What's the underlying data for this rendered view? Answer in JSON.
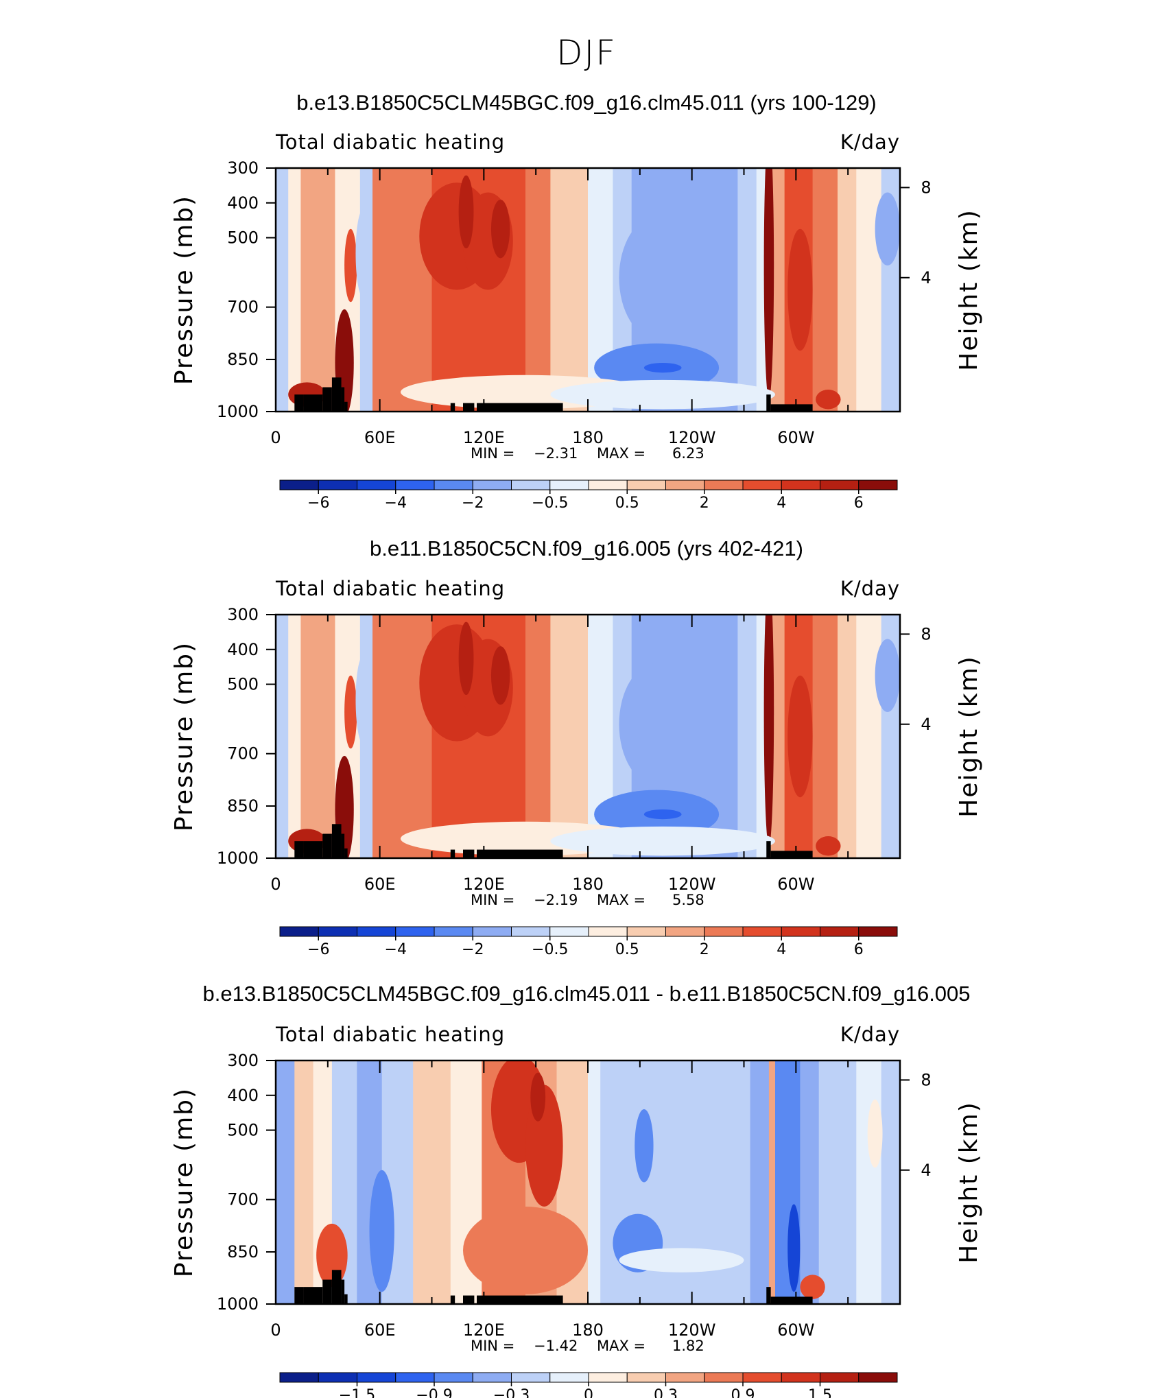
{
  "main_title": "DJF",
  "colors": {
    "scale": [
      "#0b1f8a",
      "#0d2fb3",
      "#1545d6",
      "#2e63ef",
      "#5a89f2",
      "#8eacf3",
      "#bdd1f7",
      "#e6f0fb",
      "#fdeee0",
      "#f8cdb0",
      "#f2a582",
      "#ec7a56",
      "#e54d2e",
      "#d2331d",
      "#b52012",
      "#8a0d0a"
    ],
    "land": "#000000"
  },
  "chart_data": [
    {
      "type": "heatmap",
      "title": "b.e13.B1850C5CLM45BGC.f09_g16.clm45.011 (yrs 100-129)",
      "left_string": "Total diabatic heating",
      "right_string": "K/day",
      "ylabel": "Pressure (mb)",
      "ylabel_right": "Height (km)",
      "y_ticks": [
        "300",
        "400",
        "500",
        "700",
        "850",
        "1000"
      ],
      "y_right_ticks": [
        "8",
        "4"
      ],
      "x_ticks": [
        "0",
        "60E",
        "120E",
        "180",
        "120W",
        "60W"
      ],
      "min_label": "MIN =",
      "min_value": "−2.31",
      "max_label": "MAX =",
      "max_value": "6.23",
      "colorbar_labels": [
        "−6",
        "−4",
        "−2",
        "−0.5",
        "0.5",
        "2",
        "4",
        "6"
      ],
      "values": {
        "min": -2.31,
        "max": 6.23
      }
    },
    {
      "type": "heatmap",
      "title": "b.e11.B1850C5CN.f09_g16.005 (yrs 402-421)",
      "left_string": "Total diabatic heating",
      "right_string": "K/day",
      "ylabel": "Pressure (mb)",
      "ylabel_right": "Height (km)",
      "y_ticks": [
        "300",
        "400",
        "500",
        "700",
        "850",
        "1000"
      ],
      "y_right_ticks": [
        "8",
        "4"
      ],
      "x_ticks": [
        "0",
        "60E",
        "120E",
        "180",
        "120W",
        "60W"
      ],
      "min_label": "MIN =",
      "min_value": "−2.19",
      "max_label": "MAX =",
      "max_value": "5.58",
      "colorbar_labels": [
        "−6",
        "−4",
        "−2",
        "−0.5",
        "0.5",
        "2",
        "4",
        "6"
      ],
      "values": {
        "min": -2.19,
        "max": 5.58
      }
    },
    {
      "type": "heatmap",
      "title": "b.e13.B1850C5CLM45BGC.f09_g16.clm45.011 - b.e11.B1850C5CN.f09_g16.005",
      "left_string": "Total diabatic heating",
      "right_string": "K/day",
      "ylabel": "Pressure (mb)",
      "ylabel_right": "Height (km)",
      "y_ticks": [
        "300",
        "400",
        "500",
        "700",
        "850",
        "1000"
      ],
      "y_right_ticks": [
        "8",
        "4"
      ],
      "x_ticks": [
        "0",
        "60E",
        "120E",
        "180",
        "120W",
        "60W"
      ],
      "min_label": "MIN =",
      "min_value": "−1.42",
      "max_label": "MAX =",
      "max_value": "1.82",
      "colorbar_labels": [
        "−1.5",
        "−0.9",
        "−0.3",
        "0",
        "0.3",
        "0.9",
        "1.5"
      ],
      "values": {
        "min": -1.42,
        "max": 1.82
      }
    }
  ]
}
